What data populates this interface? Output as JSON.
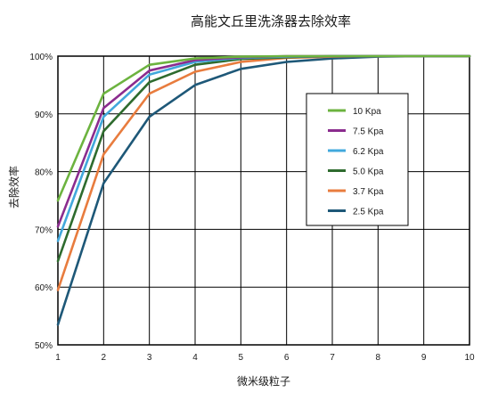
{
  "chart_data": {
    "type": "line",
    "title": "高能文丘里洗涤器去除效率",
    "xlabel": "微米级粒子",
    "ylabel": "去除效率",
    "xlim": [
      1,
      10
    ],
    "ylim": [
      50,
      100
    ],
    "x_ticks": [
      "1",
      "2",
      "3",
      "4",
      "5",
      "6",
      "7",
      "8",
      "9",
      "10"
    ],
    "y_ticks": [
      "50%",
      "60%",
      "70%",
      "80%",
      "90%",
      "100%"
    ],
    "grid": true,
    "legend_position": "center-right",
    "x": [
      1,
      2,
      3,
      4,
      5,
      6,
      7,
      8,
      9,
      10
    ],
    "series": [
      {
        "name": "10  Kpa",
        "color": "#6cb33f",
        "values": [
          75.0,
          93.5,
          98.5,
          99.6,
          99.9,
          100,
          100,
          100,
          100,
          100
        ]
      },
      {
        "name": "7.5 Kpa",
        "color": "#8b2c8e",
        "values": [
          70.5,
          91.0,
          97.5,
          99.3,
          99.8,
          100,
          100,
          100,
          100,
          100
        ]
      },
      {
        "name": "6.2 Kpa",
        "color": "#42a8dc",
        "values": [
          68.0,
          89.5,
          96.8,
          99.0,
          99.7,
          99.9,
          100,
          100,
          100,
          100
        ]
      },
      {
        "name": "5.0 Kpa",
        "color": "#2e6b2e",
        "values": [
          64.5,
          87.0,
          95.5,
          98.5,
          99.5,
          99.8,
          100,
          100,
          100,
          100
        ]
      },
      {
        "name": "3.7 Kpa",
        "color": "#e87c3e",
        "values": [
          59.5,
          83.0,
          93.5,
          97.3,
          99.0,
          99.7,
          99.9,
          100,
          100,
          100
        ]
      },
      {
        "name": "2.5 Kpa",
        "color": "#1e5878",
        "values": [
          53.5,
          78.0,
          89.5,
          95.0,
          97.8,
          99.0,
          99.6,
          99.9,
          100,
          100
        ]
      }
    ]
  }
}
